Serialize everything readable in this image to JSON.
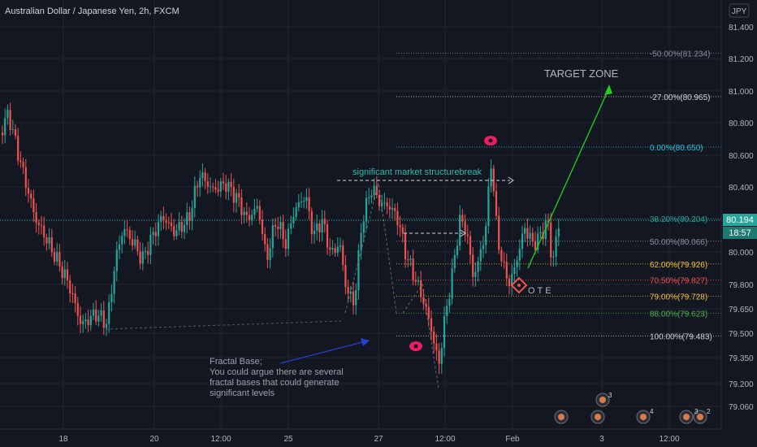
{
  "header": {
    "symbol_title": "Australian Dollar / Japanese Yen, 2h, FXCM",
    "currency": "JPY"
  },
  "colors": {
    "background": "#131722",
    "grid": "#1f2430",
    "up": "#26a69a",
    "down": "#ef5350",
    "axis_text": "#b2b5be",
    "price_tag": "#26a69a",
    "annotation_teal": "#2bbbad",
    "target_green": "#22d11e",
    "arrow_blue": "#2a3fd0",
    "marker_pink": "#e91e63"
  },
  "chart_data": {
    "type": "candlestick",
    "y_axis": {
      "ticks": [
        "81.400",
        "81.200",
        "81.000",
        "80.800",
        "80.600",
        "80.400",
        "80.200",
        "80.000",
        "79.800",
        "79.650",
        "79.500",
        "79.350",
        "79.200",
        "79.060"
      ]
    },
    "x_axis": {
      "ticks": [
        "18",
        "20",
        "12:00",
        "25",
        "27",
        "12:00",
        "Feb",
        "3",
        "12:00"
      ]
    },
    "last_price": "80.194",
    "countdown": "18:57",
    "fib_levels": [
      {
        "label": "-50.00%(81.234)",
        "value": 81.234,
        "color": "#8a8f9c"
      },
      {
        "label": "-27.00%(80.965)",
        "value": 80.965,
        "color": "#d1d4dc"
      },
      {
        "label": "0.00%(80.650)",
        "value": 80.65,
        "color": "#26c6da"
      },
      {
        "label": "38.20%(80.204)",
        "value": 80.204,
        "color": "#26a69a"
      },
      {
        "label": "50.00%(80.066)",
        "value": 80.066,
        "color": "#8a8f9c"
      },
      {
        "label": "62.00%(79.926)",
        "value": 79.926,
        "color": "#f0c040"
      },
      {
        "label": "70.50%(79.827)",
        "value": 79.827,
        "color": "#ef5350"
      },
      {
        "label": "79.00%(79.728)",
        "value": 79.728,
        "color": "#f0c040"
      },
      {
        "label": "88.00%(79.623)",
        "value": 79.623,
        "color": "#4caf50"
      },
      {
        "label": "100.00%(79.483)",
        "value": 79.483,
        "color": "#d1d4dc"
      }
    ],
    "annotations": {
      "target_zone": "TARGET ZONE",
      "structure_break": "significant market structurebreak",
      "ote": "OTE",
      "fractal_lines": [
        "Fractal Base;",
        "You could argue there are several",
        "fractal bases that could generate",
        "significant levels"
      ]
    },
    "event_badges": [
      "3",
      "4",
      "3",
      "2"
    ]
  }
}
